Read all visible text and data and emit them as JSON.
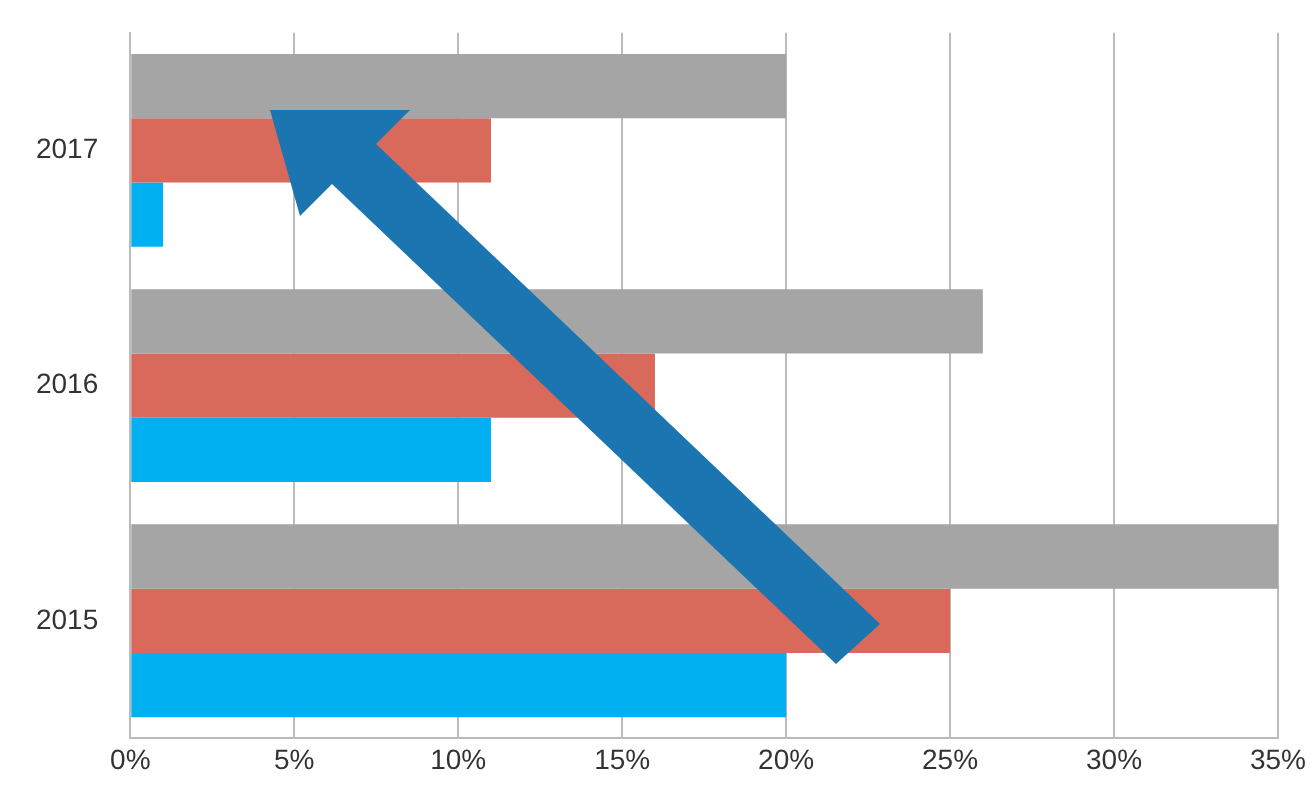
{
  "chart_data": {
    "type": "bar",
    "orientation": "horizontal",
    "categories": [
      "2017",
      "2016",
      "2015"
    ],
    "series": [
      {
        "color": "#a5a5a5",
        "values": [
          20,
          26,
          35
        ]
      },
      {
        "color": "#d9695b",
        "values": [
          11,
          16,
          25
        ]
      },
      {
        "color": "#00b0f0",
        "values": [
          1,
          11,
          20
        ]
      }
    ],
    "xlim": [
      0,
      35
    ],
    "xticks": [
      {
        "value": 0,
        "label": "0%"
      },
      {
        "value": 5,
        "label": "5%"
      },
      {
        "value": 10,
        "label": "10%"
      },
      {
        "value": 15,
        "label": "15%"
      },
      {
        "value": 20,
        "label": "20%"
      },
      {
        "value": 25,
        "label": "25%"
      },
      {
        "value": 30,
        "label": "30%"
      },
      {
        "value": 35,
        "label": "35%"
      }
    ],
    "grid": "x",
    "legend": false
  }
}
